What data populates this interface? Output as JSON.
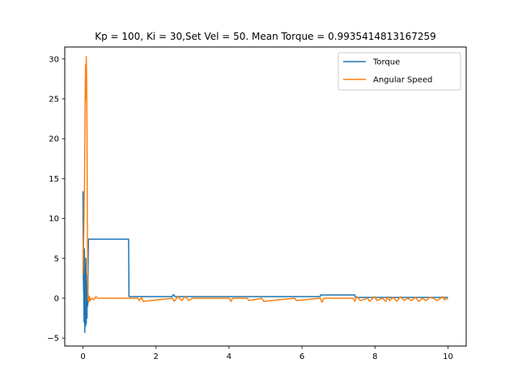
{
  "chart_data": {
    "type": "line",
    "title": "Kp = 100, Ki = 30,Set Vel = 50. Mean Torque = 0.9935414813167259",
    "xlabel": "",
    "ylabel": "",
    "xlim": [
      -0.5,
      10.5
    ],
    "ylim": [
      -6,
      31.5
    ],
    "xticks": [
      0,
      2,
      4,
      6,
      8,
      10
    ],
    "yticks": [
      -5,
      0,
      5,
      10,
      15,
      20,
      25,
      30
    ],
    "grid": false,
    "legend_position": "top-right",
    "series": [
      {
        "name": "Torque",
        "color": "#1f77b4",
        "x": [
          0,
          0.01,
          0.02,
          0.03,
          0.04,
          0.05,
          0.06,
          0.07,
          0.08,
          0.09,
          0.1,
          0.11,
          0.12,
          0.13,
          0.14,
          0.15,
          0.16,
          0.17,
          1.25,
          1.26,
          2.45,
          2.46,
          2.5,
          2.51,
          2.55,
          2.56,
          6.5,
          6.51,
          7.45,
          7.46,
          10.0
        ],
        "y": [
          13.4,
          2.5,
          0.5,
          -3.0,
          6.2,
          -4.3,
          4.0,
          -3.5,
          5.0,
          -3.2,
          2.0,
          -2.5,
          3.0,
          -1.0,
          4.0,
          7.4,
          7.4,
          7.4,
          7.4,
          0.2,
          0.2,
          0.4,
          0.4,
          0.2,
          0.2,
          0.2,
          0.2,
          0.4,
          0.4,
          0.1,
          0.1
        ]
      },
      {
        "name": "Angular Speed",
        "color": "#ff7f0e",
        "x": [
          0,
          0.02,
          0.04,
          0.06,
          0.07,
          0.08,
          0.09,
          0.1,
          0.11,
          0.12,
          0.13,
          0.14,
          0.15,
          0.16,
          0.18,
          0.2,
          0.25,
          0.3,
          0.35,
          0.4,
          0.5,
          1.0,
          1.5,
          1.55,
          1.6,
          1.65,
          2.45,
          2.5,
          2.6,
          2.7,
          2.8,
          2.9,
          3.0,
          4.0,
          4.05,
          4.1,
          4.5,
          4.55,
          4.9,
          4.95,
          5.8,
          5.85,
          6.5,
          6.55,
          6.6,
          7.4,
          7.45,
          7.5,
          7.6,
          7.8,
          7.85,
          8.0,
          8.05,
          8.2,
          8.3,
          8.35,
          8.4,
          8.5,
          8.6,
          8.7,
          8.8,
          8.9,
          9.0,
          9.1,
          9.2,
          9.3,
          9.4,
          9.5,
          9.6,
          9.7,
          9.8,
          9.85,
          9.9,
          10.0
        ],
        "y": [
          3.0,
          8.0,
          14.0,
          25.5,
          29.3,
          25.0,
          30.3,
          27.0,
          20.0,
          9.0,
          2.0,
          -0.3,
          0.3,
          -0.5,
          0.2,
          -0.3,
          0.0,
          -0.2,
          0.2,
          0.0,
          0.0,
          0.0,
          0.0,
          -0.3,
          0.1,
          -0.4,
          0.0,
          -0.4,
          0.2,
          -0.3,
          0.2,
          -0.3,
          0.0,
          0.0,
          -0.4,
          0.0,
          0.0,
          -0.3,
          0.0,
          -0.4,
          0.0,
          -0.3,
          0.0,
          -0.5,
          0.0,
          0.0,
          -0.4,
          0.2,
          -0.3,
          0.0,
          -0.4,
          0.2,
          -0.3,
          0.0,
          -0.4,
          0.2,
          -0.3,
          0.1,
          -0.4,
          0.2,
          -0.3,
          0.0,
          -0.3,
          0.1,
          -0.4,
          0.0,
          -0.3,
          0.1,
          0.0,
          -0.3,
          0.0,
          0.2,
          -0.2,
          0.0
        ]
      }
    ]
  }
}
